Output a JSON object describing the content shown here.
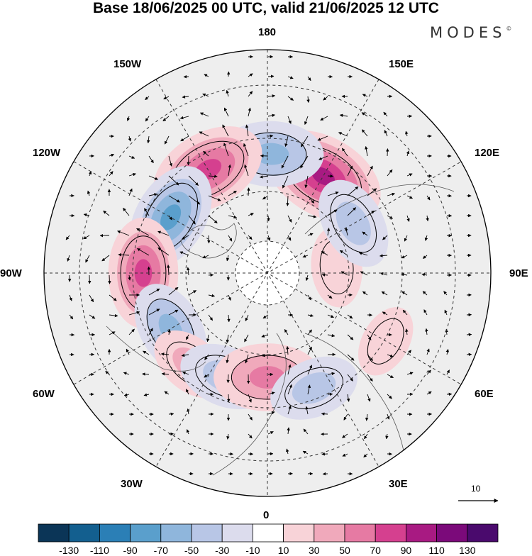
{
  "title": "Base 18/06/2025 00 UTC, valid 21/06/2025 12 UTC",
  "brand": "MODES",
  "brand_mark": "©",
  "longitude_labels": {
    "top": "180",
    "bottom": "0",
    "left": "90W",
    "right": "90E",
    "upper_left": "150W",
    "upper_right": "150E",
    "mid_left_upper": "120W",
    "mid_right_upper": "120E",
    "mid_left_lower": "60W",
    "mid_right_lower": "60E",
    "lower_left": "30W",
    "lower_right": "30E"
  },
  "reference_vector": "10",
  "colorbar": {
    "ticks": [
      "-130",
      "-110",
      "-90",
      "-70",
      "-50",
      "-30",
      "-10",
      "10",
      "30",
      "50",
      "70",
      "90",
      "110",
      "130"
    ],
    "colors": [
      "#0b3557",
      "#135f8f",
      "#2b7fb6",
      "#5a9fcc",
      "#8fb6dc",
      "#b8c6e6",
      "#dcdced",
      "#ffffff",
      "#f8d3d8",
      "#f0a9bb",
      "#e67aa3",
      "#d5408f",
      "#a81a82",
      "#7b0a7a",
      "#4a0a6d"
    ]
  },
  "anomaly_centers": [
    {
      "lon": 150,
      "lat": 45,
      "value": 100
    },
    {
      "lon": 178,
      "lat": 42,
      "value": -70
    },
    {
      "lon": -150,
      "lat": 42,
      "value": 90
    },
    {
      "lon": -120,
      "lat": 45,
      "value": -80
    },
    {
      "lon": -90,
      "lat": 40,
      "value": 80
    },
    {
      "lon": -60,
      "lat": 45,
      "value": -60
    },
    {
      "lon": -40,
      "lat": 42,
      "value": 40
    },
    {
      "lon": -22,
      "lat": 45,
      "value": -55
    },
    {
      "lon": 0,
      "lat": 48,
      "value": 75
    },
    {
      "lon": 22,
      "lat": 40,
      "value": -50
    },
    {
      "lon": 60,
      "lat": 35,
      "value": 25
    },
    {
      "lon": 95,
      "lat": 62,
      "value": 35
    },
    {
      "lon": 120,
      "lat": 50,
      "value": -55
    }
  ]
}
